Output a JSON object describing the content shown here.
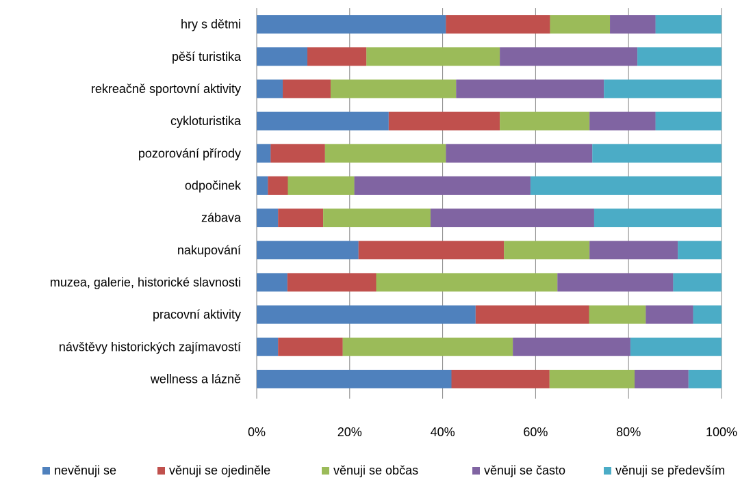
{
  "chart_data": {
    "type": "bar",
    "orientation": "horizontal",
    "stacked": "percent",
    "categories": [
      "hry s dětmi",
      "pěší turistika",
      "rekreačně sportovní aktivity",
      "cykloturistika",
      "pozorování přírody",
      "odpočinek",
      "zábava",
      "nakupování",
      "muzea, galerie, historické slavnosti",
      "pracovní aktivity",
      "návštěvy historických zajímavostí",
      "wellness a lázně"
    ],
    "series": [
      {
        "name": "nevěnuji se",
        "color": "#4F81BD",
        "values": [
          40.7,
          10.9,
          5.6,
          28.4,
          3.0,
          2.4,
          4.6,
          21.9,
          6.6,
          47.1,
          4.6,
          41.9
        ]
      },
      {
        "name": "věnuji se ojediněle",
        "color": "#C0504D",
        "values": [
          22.4,
          12.7,
          10.3,
          23.9,
          11.7,
          4.3,
          9.7,
          31.3,
          19.1,
          24.4,
          13.9,
          21.1
        ]
      },
      {
        "name": "věnuji se občas",
        "color": "#9BBB59",
        "values": [
          12.9,
          28.7,
          27.0,
          19.3,
          26.0,
          14.3,
          23.1,
          18.4,
          39.0,
          12.2,
          36.6,
          18.3
        ]
      },
      {
        "name": "věnuji se často",
        "color": "#8064A2",
        "values": [
          9.8,
          29.6,
          31.8,
          14.2,
          31.5,
          37.9,
          35.2,
          19.0,
          24.9,
          10.2,
          25.3,
          11.6
        ]
      },
      {
        "name": "věnuji se především",
        "color": "#4BACC6",
        "values": [
          14.2,
          18.1,
          25.3,
          14.2,
          27.8,
          41.1,
          27.4,
          9.4,
          10.4,
          6.1,
          19.6,
          7.1
        ]
      }
    ],
    "x_ticks": [
      "0%",
      "20%",
      "40%",
      "60%",
      "80%",
      "100%"
    ],
    "xlim": [
      0,
      100
    ],
    "grid": true,
    "legend": "bottom",
    "title": "",
    "xlabel": "",
    "ylabel": ""
  }
}
